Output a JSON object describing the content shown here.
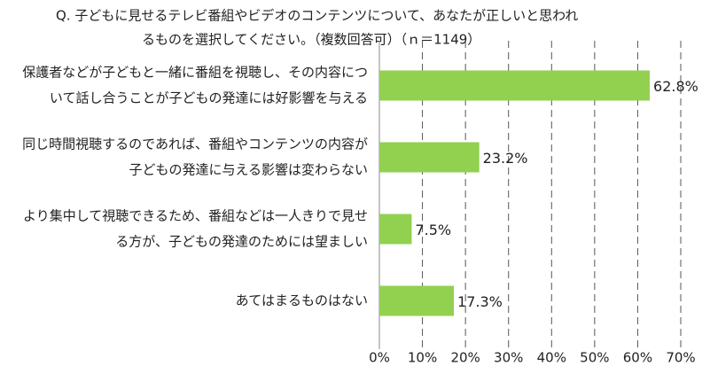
{
  "chart_data": {
    "type": "bar",
    "orientation": "horizontal",
    "title": [
      "Q.  子どもに見せるテレビ番組やビデオのコンテンツについて、あなたが正しいと思われ",
      "るものを選択してください。（複数回答可）（ｎ＝1149）"
    ],
    "categories": [
      [
        "保護者などが子どもと一緒に番組を視聴し、その内容につ",
        "いて話し合うことが子どもの発達には好影響を与える"
      ],
      [
        "同じ時間視聴するのであれば、番組やコンテンツの内容が",
        "子どもの発達に与える影響は変わらない"
      ],
      [
        "より集中して視聴できるため、番組などは一人きりで見せ",
        "る方が、子どもの発達のためには望ましい"
      ],
      [
        "あてはまるものはない"
      ]
    ],
    "values": [
      62.8,
      23.2,
      7.5,
      17.3
    ],
    "value_labels": [
      "62.8%",
      "23.2%",
      "7.5%",
      "17.3%"
    ],
    "color": "#92d050",
    "xlim": [
      0,
      70
    ],
    "xticks": [
      {
        "value": 0,
        "label": "0%"
      },
      {
        "value": 10,
        "label": "10%"
      },
      {
        "value": 20,
        "label": "20%"
      },
      {
        "value": 30,
        "label": "30%"
      },
      {
        "value": 40,
        "label": "40%"
      },
      {
        "value": 50,
        "label": "50%"
      },
      {
        "value": 60,
        "label": "60%"
      },
      {
        "value": 70,
        "label": "70%"
      }
    ],
    "grid": true
  }
}
